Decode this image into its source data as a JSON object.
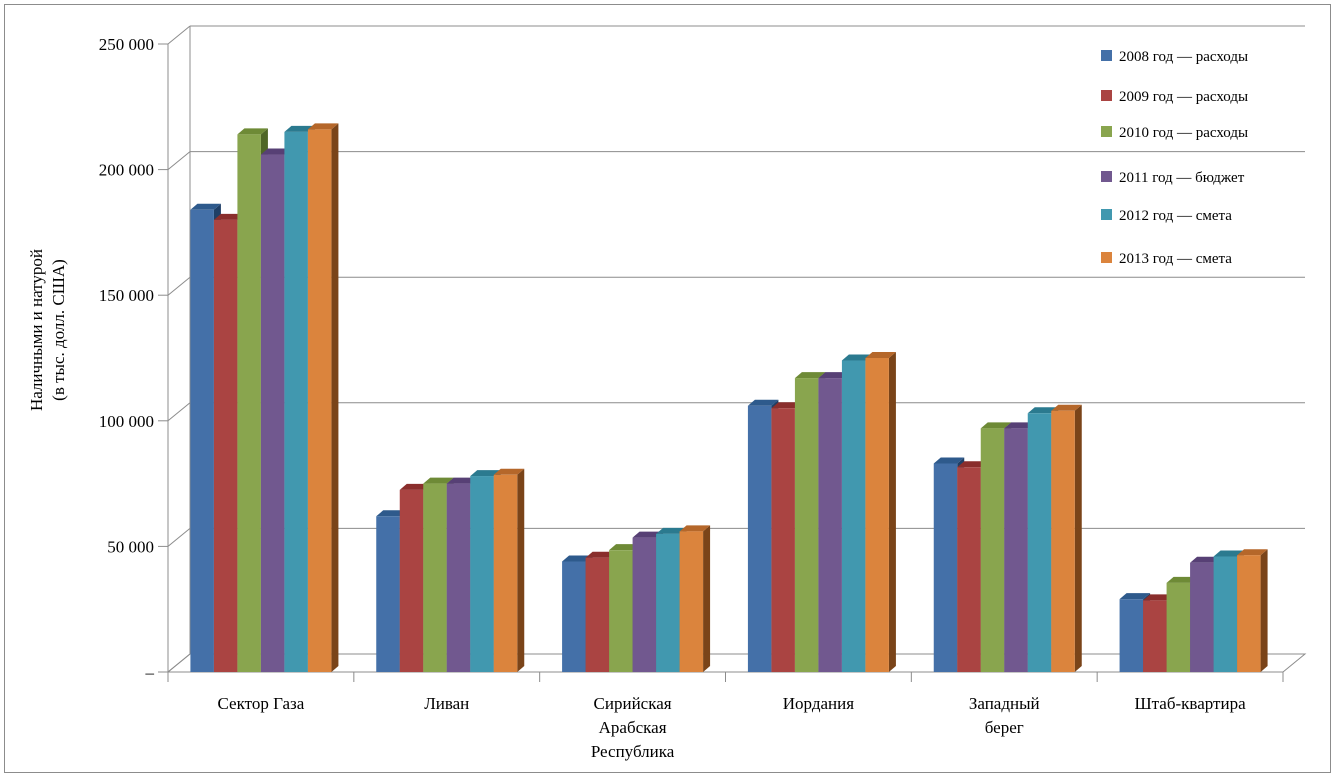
{
  "chart_data": {
    "type": "bar",
    "ylabel": [
      "Наличными и натурой",
      "(в тыс. долл. США)"
    ],
    "ylim": [
      0,
      250000
    ],
    "yticks": [
      {
        "value": 0,
        "label": "–"
      },
      {
        "value": 50000,
        "label": "50 000"
      },
      {
        "value": 100000,
        "label": "100 000"
      },
      {
        "value": 150000,
        "label": "150 000"
      },
      {
        "value": 200000,
        "label": "200 000"
      },
      {
        "value": 250000,
        "label": "250 000"
      }
    ],
    "categories": [
      [
        "Сектор Газа"
      ],
      [
        "Ливан"
      ],
      [
        "Сирийская",
        "Арабская",
        "Республика"
      ],
      [
        "Иордания"
      ],
      [
        "Западный",
        "берег"
      ],
      [
        "Штаб-квартира"
      ]
    ],
    "legend_position": "top-right",
    "grid": true,
    "series": [
      {
        "name": "2008 год — расходы",
        "color": "#4470A8",
        "top": "#2E5A8C",
        "side": "#1F3F66",
        "values": [
          184000,
          62000,
          44000,
          106000,
          83000,
          29000
        ]
      },
      {
        "name": "2009 год — расходы",
        "color": "#AA4442",
        "top": "#8A2E2C",
        "side": "#6B1F1E",
        "values": [
          180000,
          72500,
          45500,
          105000,
          81500,
          28500
        ]
      },
      {
        "name": "2010 год — расходы",
        "color": "#89A54E",
        "top": "#6E8A36",
        "side": "#4F6626",
        "values": [
          214000,
          75000,
          48500,
          117000,
          97000,
          35500
        ]
      },
      {
        "name": "2011 год — бюджет",
        "color": "#71588F",
        "top": "#574075",
        "side": "#3E2C56",
        "values": [
          206000,
          75000,
          53500,
          117000,
          97000,
          43500
        ]
      },
      {
        "name": "2012 год — смета",
        "color": "#4198AF",
        "top": "#2B7A8F",
        "side": "#1D5868",
        "values": [
          215000,
          78000,
          55000,
          124000,
          103000,
          46000
        ]
      },
      {
        "name": "2013 год — смета",
        "color": "#DB843D",
        "top": "#B5672A",
        "side": "#7A4419",
        "values": [
          216000,
          78500,
          56000,
          125000,
          104000,
          46500
        ]
      }
    ]
  }
}
